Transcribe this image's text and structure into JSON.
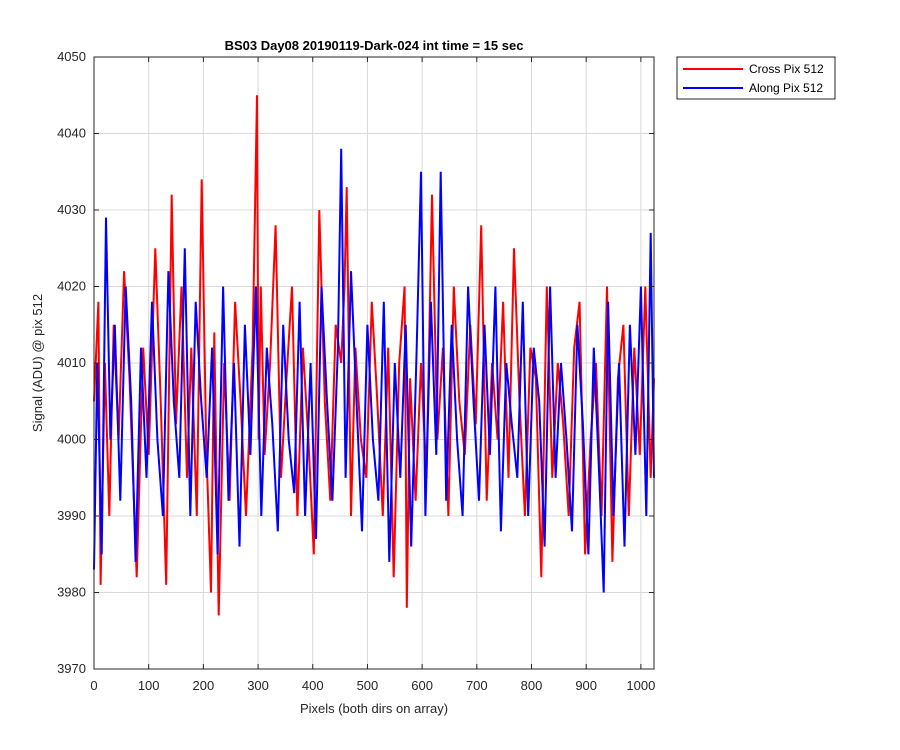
{
  "chart_data": {
    "type": "line",
    "title": "BS03 Day08 20190119-Dark-024 int time = 15 sec",
    "xlabel": "Pixels (both dirs on array)",
    "ylabel": "Signal (ADU) @ pix 512",
    "xlim": [
      0,
      1024
    ],
    "ylim": [
      3970,
      4050
    ],
    "xticks": [
      0,
      100,
      200,
      300,
      400,
      500,
      600,
      700,
      800,
      900,
      1000
    ],
    "yticks": [
      3970,
      3980,
      3990,
      4000,
      4010,
      4020,
      4030,
      4040,
      4050
    ],
    "grid": true,
    "legend_position": "outside-top-right",
    "series": [
      {
        "name": "Cross Pix 512",
        "color": "#ff0000",
        "x": [
          0,
          8,
          12,
          20,
          28,
          36,
          45,
          55,
          65,
          78,
          90,
          100,
          112,
          122,
          132,
          142,
          150,
          160,
          170,
          178,
          188,
          197,
          205,
          214,
          220,
          228,
          238,
          248,
          258,
          268,
          278,
          290,
          298,
          301,
          305,
          312,
          322,
          332,
          342,
          352,
          362,
          372,
          382,
          392,
          402,
          412,
          422,
          432,
          442,
          452,
          458,
          462,
          470,
          478,
          488,
          498,
          508,
          518,
          528,
          538,
          548,
          558,
          568,
          572,
          578,
          588,
          598,
          608,
          618,
          628,
          638,
          648,
          658,
          668,
          678,
          688,
          698,
          708,
          718,
          728,
          738,
          748,
          758,
          768,
          778,
          788,
          798,
          808,
          818,
          828,
          838,
          848,
          858,
          868,
          878,
          888,
          898,
          908,
          918,
          928,
          938,
          948,
          958,
          968,
          978,
          988,
          998,
          1008,
          1018,
          1024
        ],
        "values": [
          4005,
          4018,
          3981,
          4010,
          3990,
          4015,
          4000,
          4022,
          4008,
          3982,
          4012,
          3998,
          4025,
          4005,
          3981,
          4032,
          4002,
          4020,
          3995,
          4012,
          3990,
          4034,
          4000,
          3980,
          4014,
          3977,
          4010,
          3992,
          4018,
          4005,
          3990,
          4012,
          4045,
          4000,
          4020,
          3998,
          4010,
          4028,
          3995,
          4008,
          4020,
          3990,
          4012,
          4000,
          3985,
          4030,
          4005,
          3992,
          4015,
          4010,
          4020,
          4033,
          3990,
          4012,
          4000,
          3995,
          4018,
          4005,
          3990,
          4012,
          3982,
          4010,
          4020,
          3978,
          4008,
          3992,
          4010,
          3995,
          4032,
          4000,
          4012,
          3990,
          4020,
          4005,
          3998,
          4015,
          4002,
          4028,
          3992,
          4010,
          4000,
          4018,
          3995,
          4025,
          4005,
          3990,
          4012,
          4008,
          3982,
          4020,
          3995,
          4010,
          4002,
          3990,
          4012,
          4018,
          3985,
          4000,
          4010,
          3990,
          4020,
          3984,
          4008,
          4015,
          3990,
          4012,
          3998,
          4020,
          3995,
          4008
        ]
      },
      {
        "name": "Along Pix 512",
        "color": "#0000ff",
        "x": [
          0,
          6,
          14,
          22,
          30,
          38,
          48,
          58,
          68,
          76,
          86,
          96,
          106,
          116,
          126,
          136,
          146,
          156,
          166,
          176,
          186,
          196,
          206,
          216,
          226,
          236,
          246,
          256,
          266,
          276,
          286,
          296,
          306,
          316,
          326,
          336,
          346,
          356,
          366,
          376,
          386,
          396,
          406,
          416,
          426,
          436,
          446,
          452,
          460,
          470,
          480,
          490,
          500,
          510,
          520,
          530,
          540,
          550,
          560,
          570,
          580,
          590,
          598,
          606,
          616,
          626,
          634,
          644,
          654,
          664,
          674,
          684,
          694,
          704,
          714,
          724,
          734,
          744,
          754,
          764,
          774,
          784,
          794,
          804,
          814,
          824,
          834,
          844,
          854,
          864,
          874,
          884,
          894,
          904,
          914,
          924,
          932,
          940,
          950,
          960,
          970,
          980,
          990,
          1000,
          1010,
          1018,
          1024
        ],
        "values": [
          3983,
          4010,
          3985,
          4029,
          4000,
          4015,
          3992,
          4020,
          4005,
          3984,
          4012,
          3995,
          4018,
          4000,
          3990,
          4022,
          4005,
          3995,
          4025,
          3990,
          4018,
          4005,
          3995,
          4012,
          3985,
          4020,
          3992,
          4010,
          3986,
          4015,
          3998,
          4020,
          3990,
          4012,
          4002,
          3988,
          4015,
          4000,
          3993,
          4018,
          3990,
          4010,
          3987,
          4020,
          4005,
          3992,
          4012,
          4038,
          3995,
          4022,
          4005,
          3988,
          4015,
          4000,
          3992,
          4018,
          3984,
          4010,
          3995,
          4015,
          3986,
          4012,
          4035,
          3990,
          4018,
          3998,
          4035,
          3992,
          4015,
          4000,
          3990,
          4020,
          4005,
          3992,
          4015,
          3998,
          4020,
          3988,
          4010,
          4002,
          3995,
          4018,
          3990,
          4012,
          4005,
          3986,
          4020,
          3995,
          4010,
          4000,
          3988,
          4015,
          4002,
          3985,
          4012,
          3995,
          3980,
          4018,
          3990,
          4010,
          3986,
          4015,
          3998,
          4020,
          3990,
          4027,
          3995
        ]
      }
    ]
  }
}
